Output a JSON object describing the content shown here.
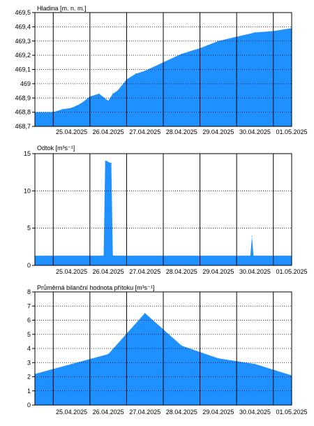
{
  "dates": [
    "25.04.2025",
    "26.04.2025",
    "27.04.2025",
    "28.04.2025",
    "29.04.2025",
    "30.04.2025",
    "01.05.2025"
  ],
  "colors": {
    "fill": "#1e90ff",
    "axis": "#000000",
    "grid": "#000000",
    "background": "#ffffff"
  },
  "chart_data": [
    {
      "type": "area",
      "title": "Hladina [m. n. m.]",
      "xlabel": "",
      "ylabel": "",
      "xlim": [
        "24.04.2025 12:00",
        "01.05.2025 12:00"
      ],
      "ylim": [
        468.7,
        469.5
      ],
      "yticks": [
        "468,7",
        "468,8",
        "468,9",
        "469",
        "469,1",
        "469,2",
        "469,3",
        "469,4",
        "469,5"
      ],
      "grid": true,
      "x": [
        "24.04.2025 12:00",
        "25.04.2025 00:00",
        "25.04.2025 06:00",
        "25.04.2025 12:00",
        "25.04.2025 18:00",
        "26.04.2025 00:00",
        "26.04.2025 06:00",
        "26.04.2025 12:00",
        "26.04.2025 15:00",
        "26.04.2025 18:00",
        "27.04.2025 00:00",
        "27.04.2025 06:00",
        "27.04.2025 12:00",
        "28.04.2025 00:00",
        "28.04.2025 12:00",
        "29.04.2025 00:00",
        "29.04.2025 12:00",
        "30.04.2025 00:00",
        "30.04.2025 12:00",
        "01.05.2025 00:00",
        "01.05.2025 12:00"
      ],
      "y": [
        468.8,
        468.8,
        468.82,
        468.83,
        468.86,
        468.91,
        468.93,
        468.88,
        468.93,
        468.95,
        469.03,
        469.07,
        469.09,
        469.15,
        469.21,
        469.25,
        469.3,
        469.33,
        469.36,
        469.37,
        469.39
      ]
    },
    {
      "type": "area",
      "title": "Odtok [m³s⁻¹]",
      "xlabel": "",
      "ylabel": "",
      "xlim": [
        "24.04.2025 12:00",
        "01.05.2025 12:00"
      ],
      "ylim": [
        0,
        15
      ],
      "yticks": [
        "0",
        "5",
        "10",
        "15"
      ],
      "grid": true,
      "x": [
        "24.04.2025 12:00",
        "26.04.2025 09:00",
        "26.04.2025 10:00",
        "26.04.2025 11:00",
        "26.04.2025 14:00",
        "26.04.2025 15:00",
        "26.04.2025 16:00",
        "30.04.2025 09:00",
        "30.04.2025 10:00",
        "30.04.2025 11:00",
        "01.05.2025 12:00"
      ],
      "y": [
        1.3,
        1.3,
        14.0,
        14.0,
        13.7,
        1.3,
        1.3,
        1.3,
        3.9,
        1.3,
        1.3
      ]
    },
    {
      "type": "area",
      "title": "Průměrná bilanční hodnota přítoku   [m³s⁻¹]",
      "xlabel": "",
      "ylabel": "",
      "xlim": [
        "24.04.2025 12:00",
        "01.05.2025 12:00"
      ],
      "ylim": [
        0,
        8
      ],
      "yticks": [
        "0",
        "1",
        "2",
        "3",
        "4",
        "5",
        "6",
        "7",
        "8"
      ],
      "grid": true,
      "x": [
        "24.04.2025 12:00",
        "25.04.2025 12:00",
        "26.04.2025 12:00",
        "27.04.2025 12:00",
        "28.04.2025 12:00",
        "29.04.2025 12:00",
        "30.04.2025 12:00",
        "01.05.2025 12:00"
      ],
      "y": [
        2.2,
        2.9,
        3.6,
        6.5,
        4.2,
        3.3,
        2.9,
        2.1
      ]
    }
  ]
}
